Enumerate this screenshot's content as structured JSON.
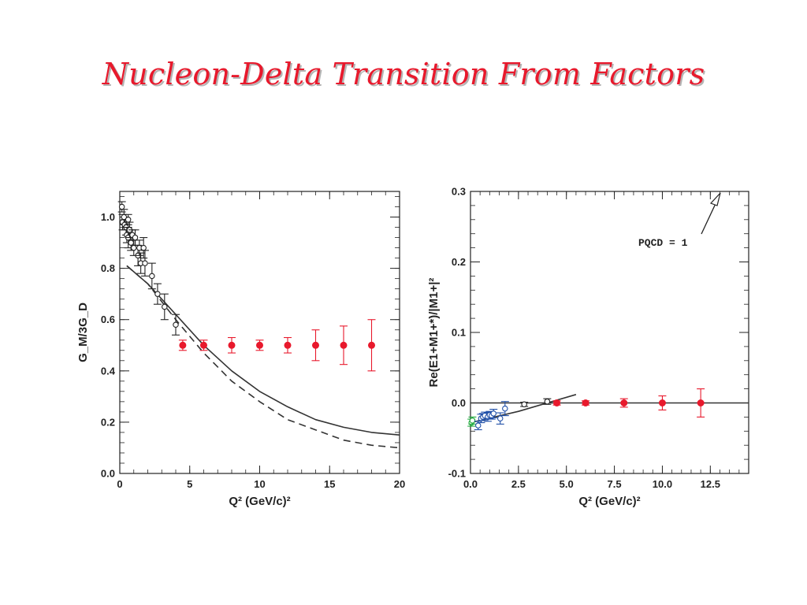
{
  "slide": {
    "title": "Nucleon-Delta Transition From Factors"
  },
  "colors": {
    "title": "#e8192c",
    "new_data": "#e8192c",
    "old_data": "#222222",
    "blue_data": "#1f4fa8",
    "green_data": "#1faa3c"
  },
  "chart_data": [
    {
      "type": "scatter",
      "title": "",
      "xlabel": "Q² (GeV/c)²",
      "ylabel": "G_M/3G_D",
      "xlim": [
        0,
        20
      ],
      "ylim": [
        0,
        1.1
      ],
      "x_ticks": [
        "0",
        "5",
        "10",
        "15",
        "20"
      ],
      "y_ticks": [
        "0.0",
        "0.2",
        "0.4",
        "0.6",
        "0.8",
        "1.0"
      ],
      "grid": false,
      "series": [
        {
          "kind": "open-circles",
          "color": "#222222",
          "points": [
            [
              0.15,
              1.04,
              0.02
            ],
            [
              0.2,
              0.98,
              0.03
            ],
            [
              0.3,
              1.0,
              0.03
            ],
            [
              0.35,
              0.97,
              0.02
            ],
            [
              0.45,
              0.96,
              0.03
            ],
            [
              0.5,
              0.93,
              0.03
            ],
            [
              0.6,
              0.99,
              0.02
            ],
            [
              0.6,
              0.92,
              0.04
            ],
            [
              0.7,
              0.95,
              0.03
            ],
            [
              0.8,
              0.9,
              0.03
            ],
            [
              0.9,
              0.93,
              0.02
            ],
            [
              1.0,
              0.88,
              0.03
            ],
            [
              1.1,
              0.92,
              0.03
            ],
            [
              1.3,
              0.85,
              0.04
            ],
            [
              1.4,
              0.88,
              0.03
            ],
            [
              1.5,
              0.82,
              0.04
            ],
            [
              1.7,
              0.88,
              0.04
            ],
            [
              1.8,
              0.82,
              0.05
            ],
            [
              2.3,
              0.77,
              0.05
            ],
            [
              2.7,
              0.7,
              0.04
            ],
            [
              3.2,
              0.65,
              0.05
            ],
            [
              4.0,
              0.58,
              0.04
            ]
          ]
        },
        {
          "kind": "filled-circles",
          "color": "#e8192c",
          "points": [
            [
              4.5,
              0.5,
              0.02
            ],
            [
              6.0,
              0.5,
              0.02
            ],
            [
              8.0,
              0.5,
              0.03
            ],
            [
              10.0,
              0.5,
              0.02
            ],
            [
              12.0,
              0.5,
              0.03
            ],
            [
              14.0,
              0.5,
              0.06
            ],
            [
              16.0,
              0.5,
              0.075
            ],
            [
              18.0,
              0.5,
              0.1
            ]
          ]
        }
      ],
      "curves": [
        {
          "style": "solid",
          "x": [
            0.5,
            2,
            4,
            6,
            8,
            10,
            12,
            14,
            16,
            18,
            20
          ],
          "y": [
            0.81,
            0.74,
            0.62,
            0.5,
            0.4,
            0.32,
            0.26,
            0.21,
            0.18,
            0.16,
            0.15
          ]
        },
        {
          "style": "dashed",
          "x": [
            0.5,
            2,
            4,
            6,
            8,
            10,
            12,
            14,
            16,
            18,
            20
          ],
          "y": [
            0.81,
            0.74,
            0.6,
            0.47,
            0.36,
            0.28,
            0.21,
            0.17,
            0.13,
            0.11,
            0.1
          ]
        }
      ]
    },
    {
      "type": "scatter",
      "title": "",
      "xlabel": "Q² (GeV/c)²",
      "ylabel": "Re(E1+M1+*)/|M1+|²",
      "xlim": [
        0,
        14.5
      ],
      "ylim": [
        -0.1,
        0.3
      ],
      "x_ticks": [
        "0.0",
        "2.5",
        "5.0",
        "7.5",
        "10.0",
        "12.5"
      ],
      "y_ticks": [
        "-0.1",
        "0.0",
        "0.1",
        "0.2",
        "0.3"
      ],
      "grid": false,
      "annotation": "PQCD = 1",
      "series": [
        {
          "kind": "open-circles",
          "color": "#1faa3c",
          "points": [
            [
              0.05,
              -0.028,
              0.005
            ],
            [
              0.1,
              -0.025,
              0.005
            ]
          ]
        },
        {
          "kind": "open-circles",
          "color": "#1f4fa8",
          "points": [
            [
              0.4,
              -0.032,
              0.006
            ],
            [
              0.55,
              -0.022,
              0.006
            ],
            [
              0.65,
              -0.02,
              0.005
            ],
            [
              0.75,
              -0.018,
              0.005
            ],
            [
              0.9,
              -0.02,
              0.006
            ],
            [
              1.0,
              -0.017,
              0.005
            ],
            [
              1.1,
              -0.018,
              0.005
            ],
            [
              1.2,
              -0.015,
              0.006
            ],
            [
              1.55,
              -0.022,
              0.008
            ],
            [
              1.8,
              -0.008,
              0.01
            ]
          ]
        },
        {
          "kind": "open-circles",
          "color": "#222222",
          "points": [
            [
              2.8,
              -0.002,
              0.003
            ],
            [
              4.0,
              0.002,
              0.004
            ]
          ]
        },
        {
          "kind": "filled-circles",
          "color": "#e8192c",
          "points": [
            [
              4.5,
              0.0,
              0.003
            ],
            [
              6.0,
              0.0,
              0.003
            ],
            [
              8.0,
              0.0,
              0.006
            ],
            [
              10.0,
              0.0,
              0.01
            ],
            [
              12.0,
              0.0,
              0.02
            ]
          ]
        }
      ],
      "curves": [
        {
          "style": "solid",
          "x": [
            0,
            14.5
          ],
          "y": [
            0.0,
            0.0
          ]
        },
        {
          "style": "solid",
          "x": [
            0.0,
            2.5,
            5.5
          ],
          "y": [
            -0.028,
            -0.012,
            0.012
          ]
        }
      ]
    }
  ]
}
